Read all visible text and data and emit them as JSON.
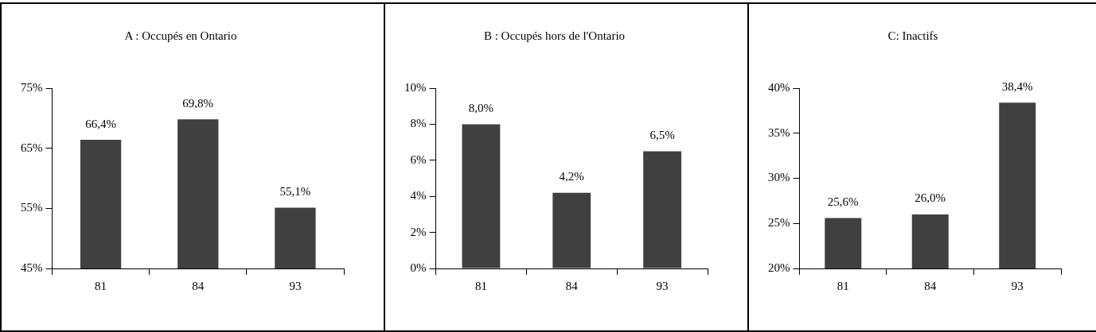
{
  "chart_data": [
    {
      "type": "bar",
      "title": "A : Occupés en Ontario",
      "categories": [
        "81",
        "84",
        "93"
      ],
      "values": [
        66.4,
        69.8,
        55.1
      ],
      "value_labels": [
        "66,4%",
        "69,8%",
        "55,1%"
      ],
      "color": "#404040",
      "ylim": [
        45,
        75
      ],
      "yticks": [
        {
          "value": 45,
          "label": "45%"
        },
        {
          "value": 55,
          "label": "55%"
        },
        {
          "value": 65,
          "label": "65%"
        },
        {
          "value": 75,
          "label": "75%"
        }
      ],
      "grid": false,
      "legend": false
    },
    {
      "type": "bar",
      "title": "B : Occupés hors de l'Ontario",
      "categories": [
        "81",
        "84",
        "93"
      ],
      "values": [
        8.0,
        4.2,
        6.5
      ],
      "value_labels": [
        "8,0%",
        "4,2%",
        "6,5%"
      ],
      "color": "#404040",
      "ylim": [
        0,
        10
      ],
      "yticks": [
        {
          "value": 0,
          "label": "0%"
        },
        {
          "value": 2,
          "label": "2%"
        },
        {
          "value": 4,
          "label": "4%"
        },
        {
          "value": 6,
          "label": "6%"
        },
        {
          "value": 8,
          "label": "8%"
        },
        {
          "value": 10,
          "label": "10%"
        }
      ],
      "grid": false,
      "legend": false
    },
    {
      "type": "bar",
      "title": "C: Inactifs",
      "categories": [
        "81",
        "84",
        "93"
      ],
      "values": [
        25.6,
        26.0,
        38.4
      ],
      "value_labels": [
        "25,6%",
        "26,0%",
        "38,4%"
      ],
      "color": "#404040",
      "ylim": [
        20,
        40
      ],
      "yticks": [
        {
          "value": 20,
          "label": "20%"
        },
        {
          "value": 25,
          "label": "25%"
        },
        {
          "value": 30,
          "label": "30%"
        },
        {
          "value": 35,
          "label": "35%"
        },
        {
          "value": 40,
          "label": "40%"
        }
      ],
      "grid": false,
      "legend": false
    }
  ]
}
